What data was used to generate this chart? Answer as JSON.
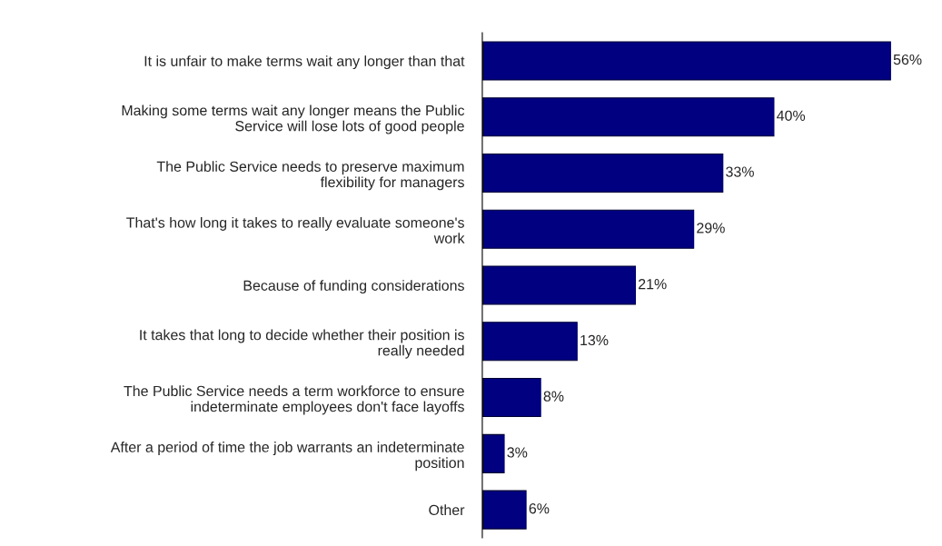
{
  "chart_data": {
    "type": "bar",
    "orientation": "horizontal",
    "color": "#000080",
    "data_labels": true,
    "value_labels": [
      "56%",
      "40%",
      "33%",
      "29%",
      "21%",
      "13%",
      "8%",
      "3%",
      "6%"
    ],
    "categories": [
      "It is unfair to make terms wait any longer than that",
      "Making some terms wait any longer means the Public\nService will lose lots of good people",
      "The Public Service needs to preserve maximum\nflexibility for managers",
      "That's how long it takes to really evaluate someone's\nwork",
      "Because of funding considerations",
      "It takes that long to decide whether their position is\nreally needed",
      "The Public Service needs a term workforce to ensure\nindeterminate employees don't face layoffs",
      "After a period of time the job warrants an indeterminate\nposition",
      "Other"
    ],
    "values": [
      56,
      40,
      33,
      29,
      21,
      13,
      8,
      3,
      6
    ]
  }
}
